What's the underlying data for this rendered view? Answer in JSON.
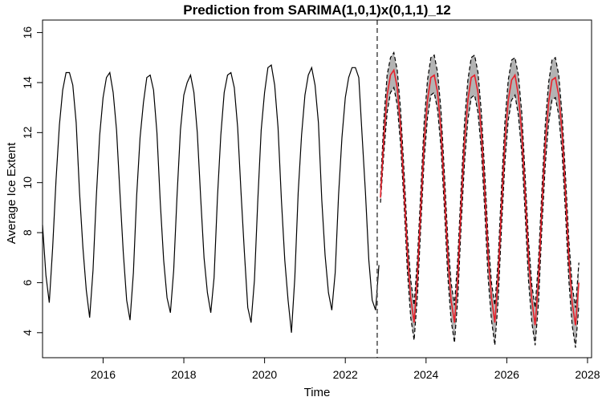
{
  "chart_data": {
    "type": "line",
    "title": "Prediction from SARIMA(1,0,1)x(0,1,1)_12",
    "xlabel": "Time",
    "ylabel": "Average Ice Extent",
    "xlim": [
      2014.5,
      2028.1
    ],
    "ylim": [
      3.0,
      16.5
    ],
    "x_ticks": [
      2016,
      2018,
      2020,
      2022,
      2024,
      2026,
      2028
    ],
    "y_ticks": [
      4,
      6,
      8,
      10,
      12,
      14,
      16
    ],
    "forecast_origin": 2022.79,
    "grid": false,
    "legend": "none",
    "observed": {
      "start": 2014.5,
      "step": 0.08333,
      "values": [
        8.3,
        6.3,
        5.2,
        7.4,
        10.1,
        12.3,
        13.7,
        14.4,
        14.4,
        13.9,
        12.4,
        9.6,
        7.4,
        5.7,
        4.6,
        6.5,
        9.5,
        11.9,
        13.4,
        14.2,
        14.4,
        13.6,
        12.1,
        9.6,
        7.2,
        5.3,
        4.5,
        6.4,
        9.5,
        11.8,
        13.2,
        14.2,
        14.3,
        13.7,
        12.0,
        9.2,
        6.9,
        5.4,
        4.8,
        6.5,
        9.5,
        12.1,
        13.5,
        14.0,
        14.3,
        13.6,
        12.0,
        9.4,
        7.0,
        5.6,
        4.8,
        6.2,
        9.4,
        11.9,
        13.6,
        14.3,
        14.4,
        13.8,
        12.2,
        9.6,
        7.2,
        5.0,
        4.4,
        6.1,
        9.3,
        12.1,
        13.6,
        14.6,
        14.7,
        13.9,
        12.2,
        9.3,
        6.9,
        5.3,
        4.0,
        6.2,
        9.6,
        11.9,
        13.5,
        14.3,
        14.6,
        13.9,
        12.4,
        9.3,
        7.1,
        5.6,
        4.9,
        6.4,
        9.5,
        11.8,
        13.4,
        14.2,
        14.6,
        14.6,
        14.2,
        11.9,
        9.6,
        6.9,
        5.3,
        4.9,
        6.7
      ]
    },
    "forecast": {
      "start": 2022.87,
      "step": 0.08333,
      "values": [
        9.4,
        11.8,
        13.5,
        14.3,
        14.5,
        13.8,
        12.2,
        9.8,
        7.2,
        5.4,
        4.4,
        6.3,
        9.0,
        11.6,
        13.3,
        14.2,
        14.3,
        13.6,
        12.1,
        9.7,
        7.1,
        5.3,
        4.4,
        6.2,
        9.1,
        11.6,
        13.3,
        14.2,
        14.3,
        13.6,
        12.0,
        9.7,
        7.1,
        5.4,
        4.4,
        6.2,
        9.0,
        11.6,
        13.3,
        14.1,
        14.3,
        13.5,
        12.0,
        9.6,
        7.0,
        5.3,
        4.3,
        6.1,
        9.0,
        11.5,
        13.2,
        14.1,
        14.2,
        13.5,
        12.0,
        9.6,
        7.0,
        5.2,
        4.3,
        6.0
      ],
      "lower": [
        9.2,
        11.2,
        12.8,
        13.6,
        13.8,
        13.1,
        11.5,
        9.2,
        6.5,
        4.6,
        3.7,
        5.5,
        8.3,
        10.9,
        12.6,
        13.5,
        13.6,
        12.9,
        11.4,
        9.0,
        6.3,
        4.5,
        3.6,
        5.4,
        8.3,
        10.8,
        12.5,
        13.4,
        13.5,
        12.8,
        11.3,
        8.9,
        6.2,
        4.5,
        3.5,
        5.3,
        8.2,
        10.8,
        12.5,
        13.3,
        13.5,
        12.7,
        11.2,
        8.8,
        6.1,
        4.4,
        3.5,
        5.2,
        8.2,
        10.7,
        12.4,
        13.3,
        13.4,
        12.7,
        11.2,
        8.8,
        6.1,
        4.3,
        3.4,
        5.1
      ],
      "upper": [
        9.8,
        12.5,
        14.3,
        15.0,
        15.2,
        14.5,
        12.9,
        10.5,
        7.9,
        6.1,
        5.1,
        7.0,
        9.7,
        12.4,
        14.1,
        15.0,
        15.1,
        14.4,
        12.9,
        10.4,
        7.8,
        6.0,
        5.1,
        7.0,
        9.8,
        12.4,
        14.1,
        15.0,
        15.1,
        14.4,
        12.8,
        10.4,
        7.8,
        6.0,
        5.1,
        6.9,
        9.8,
        12.4,
        14.1,
        14.9,
        15.0,
        14.3,
        12.8,
        10.3,
        7.7,
        5.9,
        5.0,
        6.9,
        9.7,
        12.3,
        14.0,
        14.9,
        15.0,
        14.3,
        12.7,
        10.3,
        7.7,
        5.9,
        5.0,
        6.8
      ]
    },
    "colors": {
      "observed": "#000000",
      "forecast": "#e8212b",
      "interval_fill": "#b3b3b3",
      "interval_border": "#000000",
      "forecast_origin_line": "#555555"
    }
  }
}
